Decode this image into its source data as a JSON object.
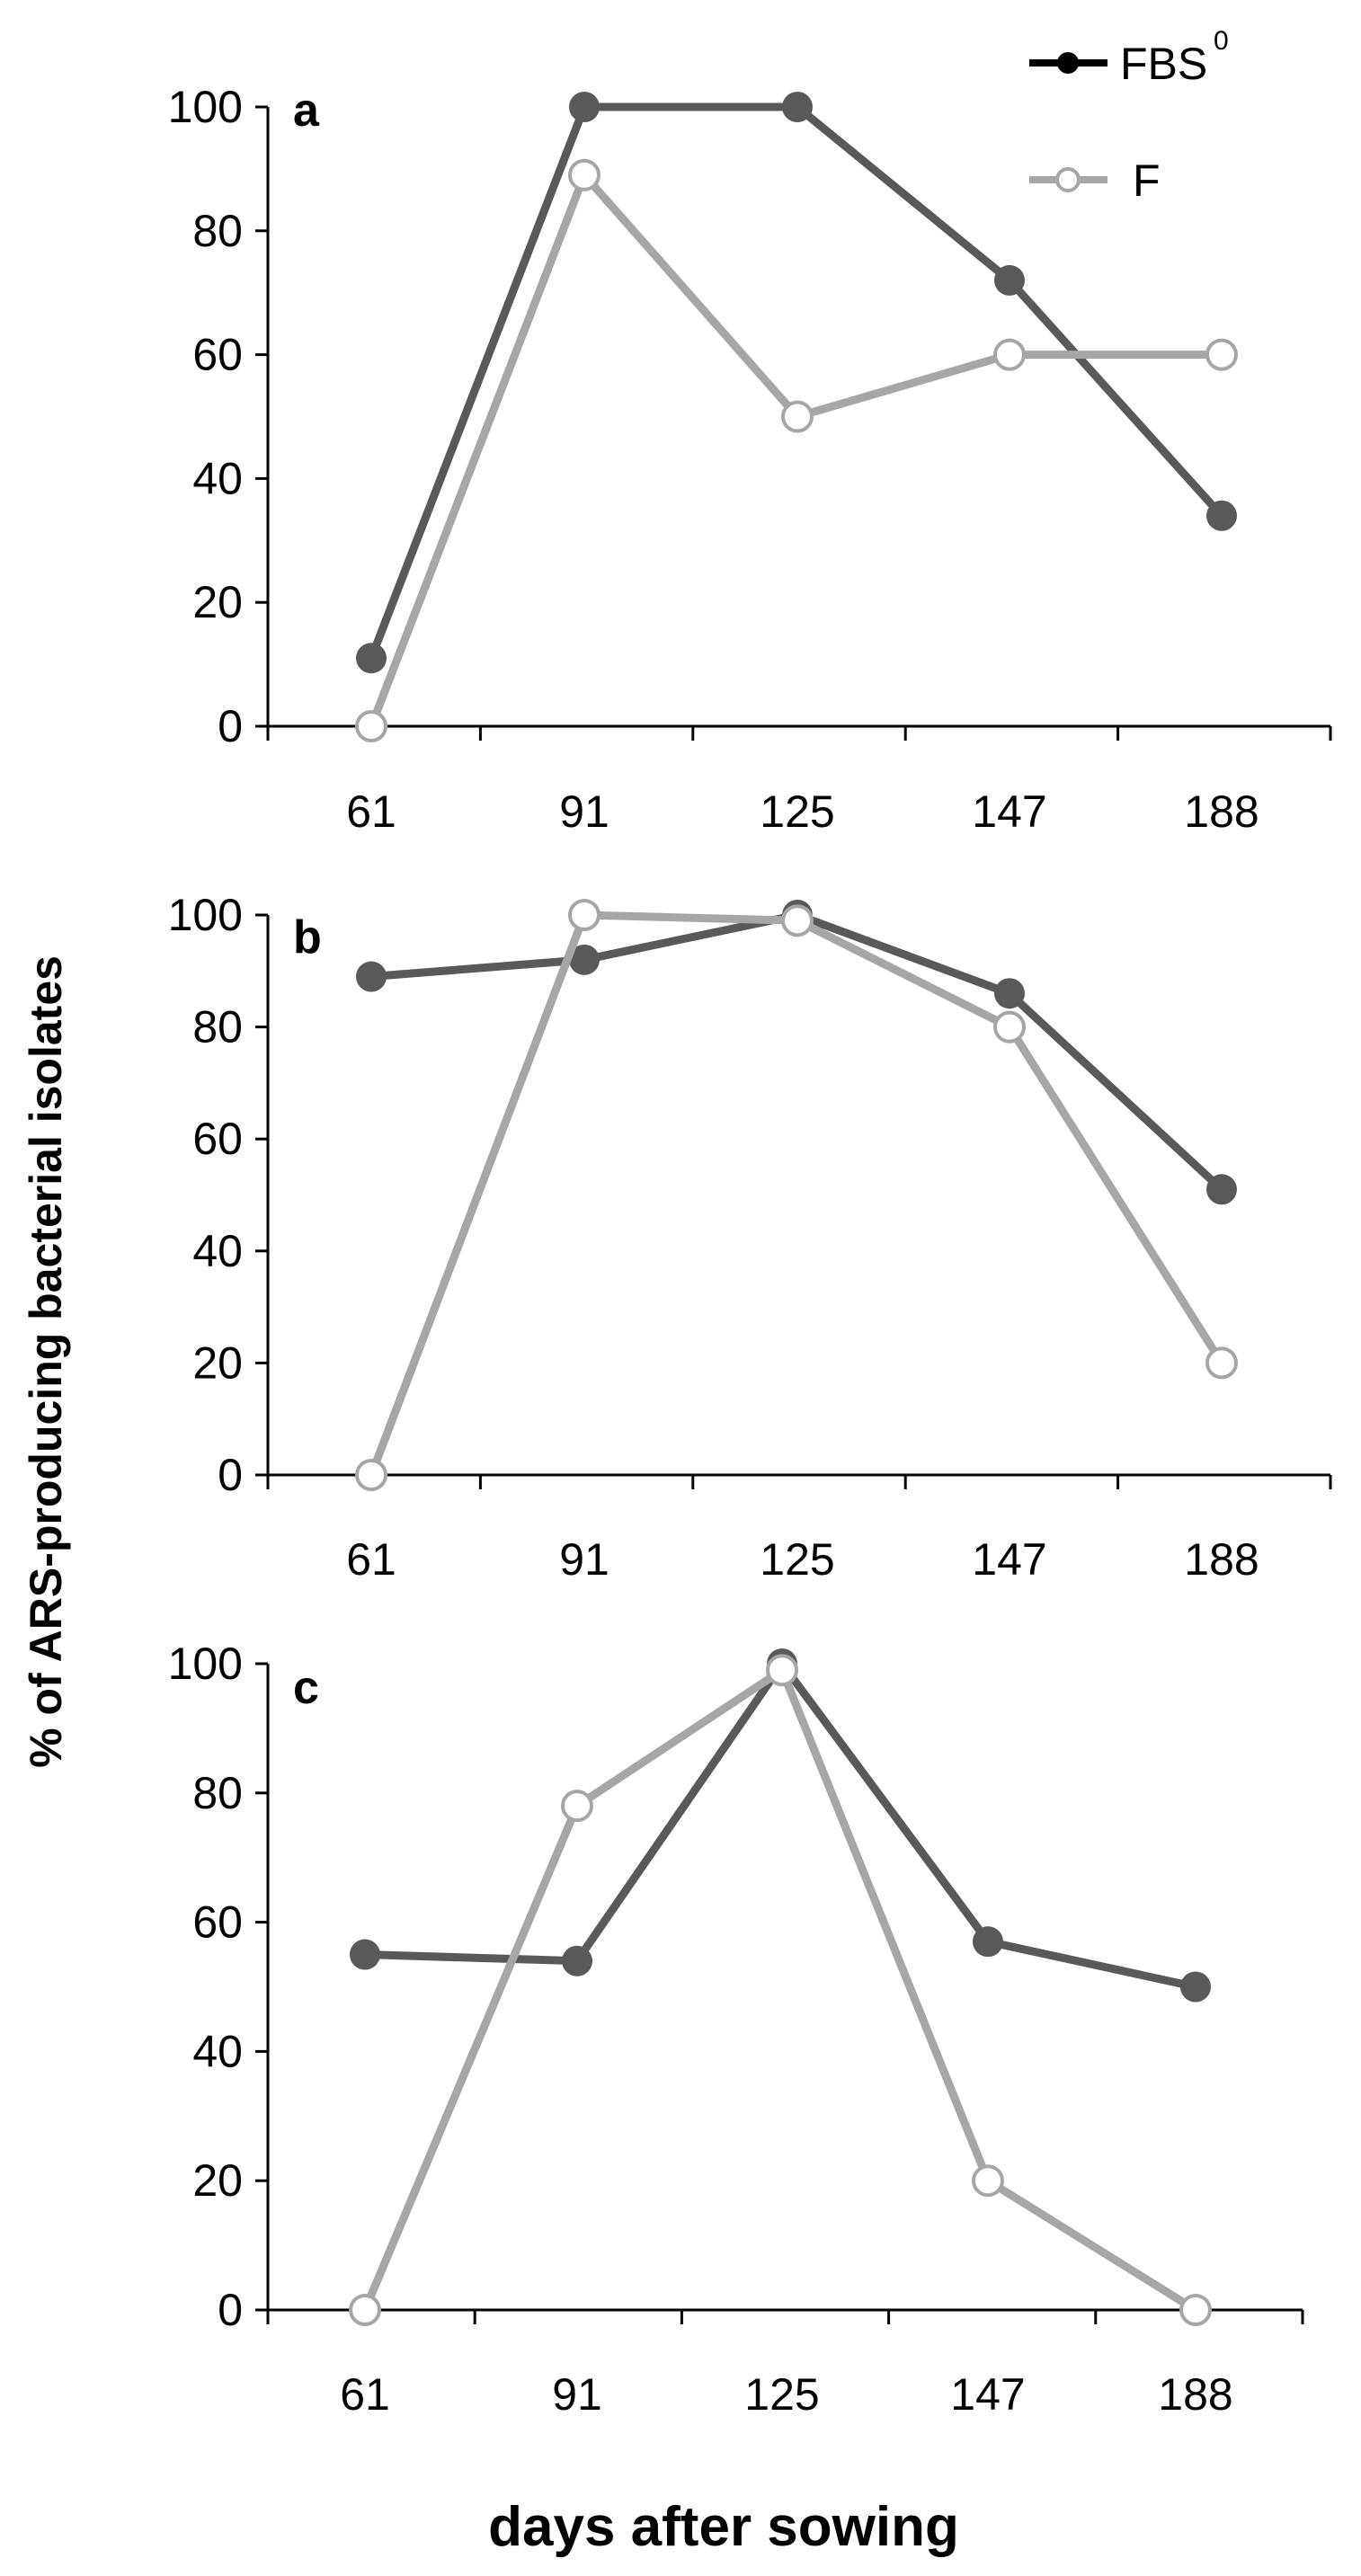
{
  "chart_data": [
    {
      "type": "line",
      "panel": "a",
      "categories": [
        "61",
        "91",
        "125",
        "147",
        "188"
      ],
      "ylim": [
        0,
        100
      ],
      "yticks": [
        0,
        20,
        40,
        60,
        80,
        100
      ],
      "series": [
        {
          "name": "FBS",
          "values": [
            11,
            100,
            100,
            72,
            34
          ]
        },
        {
          "name": "F",
          "values": [
            0,
            89,
            50,
            60,
            60
          ]
        }
      ]
    },
    {
      "type": "line",
      "panel": "b",
      "categories": [
        "61",
        "91",
        "125",
        "147",
        "188"
      ],
      "ylim": [
        0,
        100
      ],
      "yticks": [
        0,
        20,
        40,
        60,
        80,
        100
      ],
      "series": [
        {
          "name": "FBS",
          "values": [
            89,
            92,
            100,
            86,
            51
          ]
        },
        {
          "name": "F",
          "values": [
            0,
            100,
            99,
            80,
            20
          ]
        }
      ]
    },
    {
      "type": "line",
      "panel": "c",
      "categories": [
        "61",
        "91",
        "125",
        "147",
        "188"
      ],
      "ylim": [
        0,
        100
      ],
      "yticks": [
        0,
        20,
        40,
        60,
        80,
        100
      ],
      "series": [
        {
          "name": "FBS",
          "values": [
            55,
            54,
            100,
            57,
            50
          ]
        },
        {
          "name": "F",
          "values": [
            0,
            78,
            99,
            20,
            0
          ]
        }
      ]
    }
  ],
  "legend": {
    "fbs_label": "FBS",
    "fbs_sup": "0",
    "f_label": "F"
  },
  "ylabel": "% of ARS-producing bacterial isolates",
  "xlabel": "days after sowing",
  "colors": {
    "FBS": "#595959",
    "F": "#a6a6a6",
    "axis": "#000000"
  }
}
